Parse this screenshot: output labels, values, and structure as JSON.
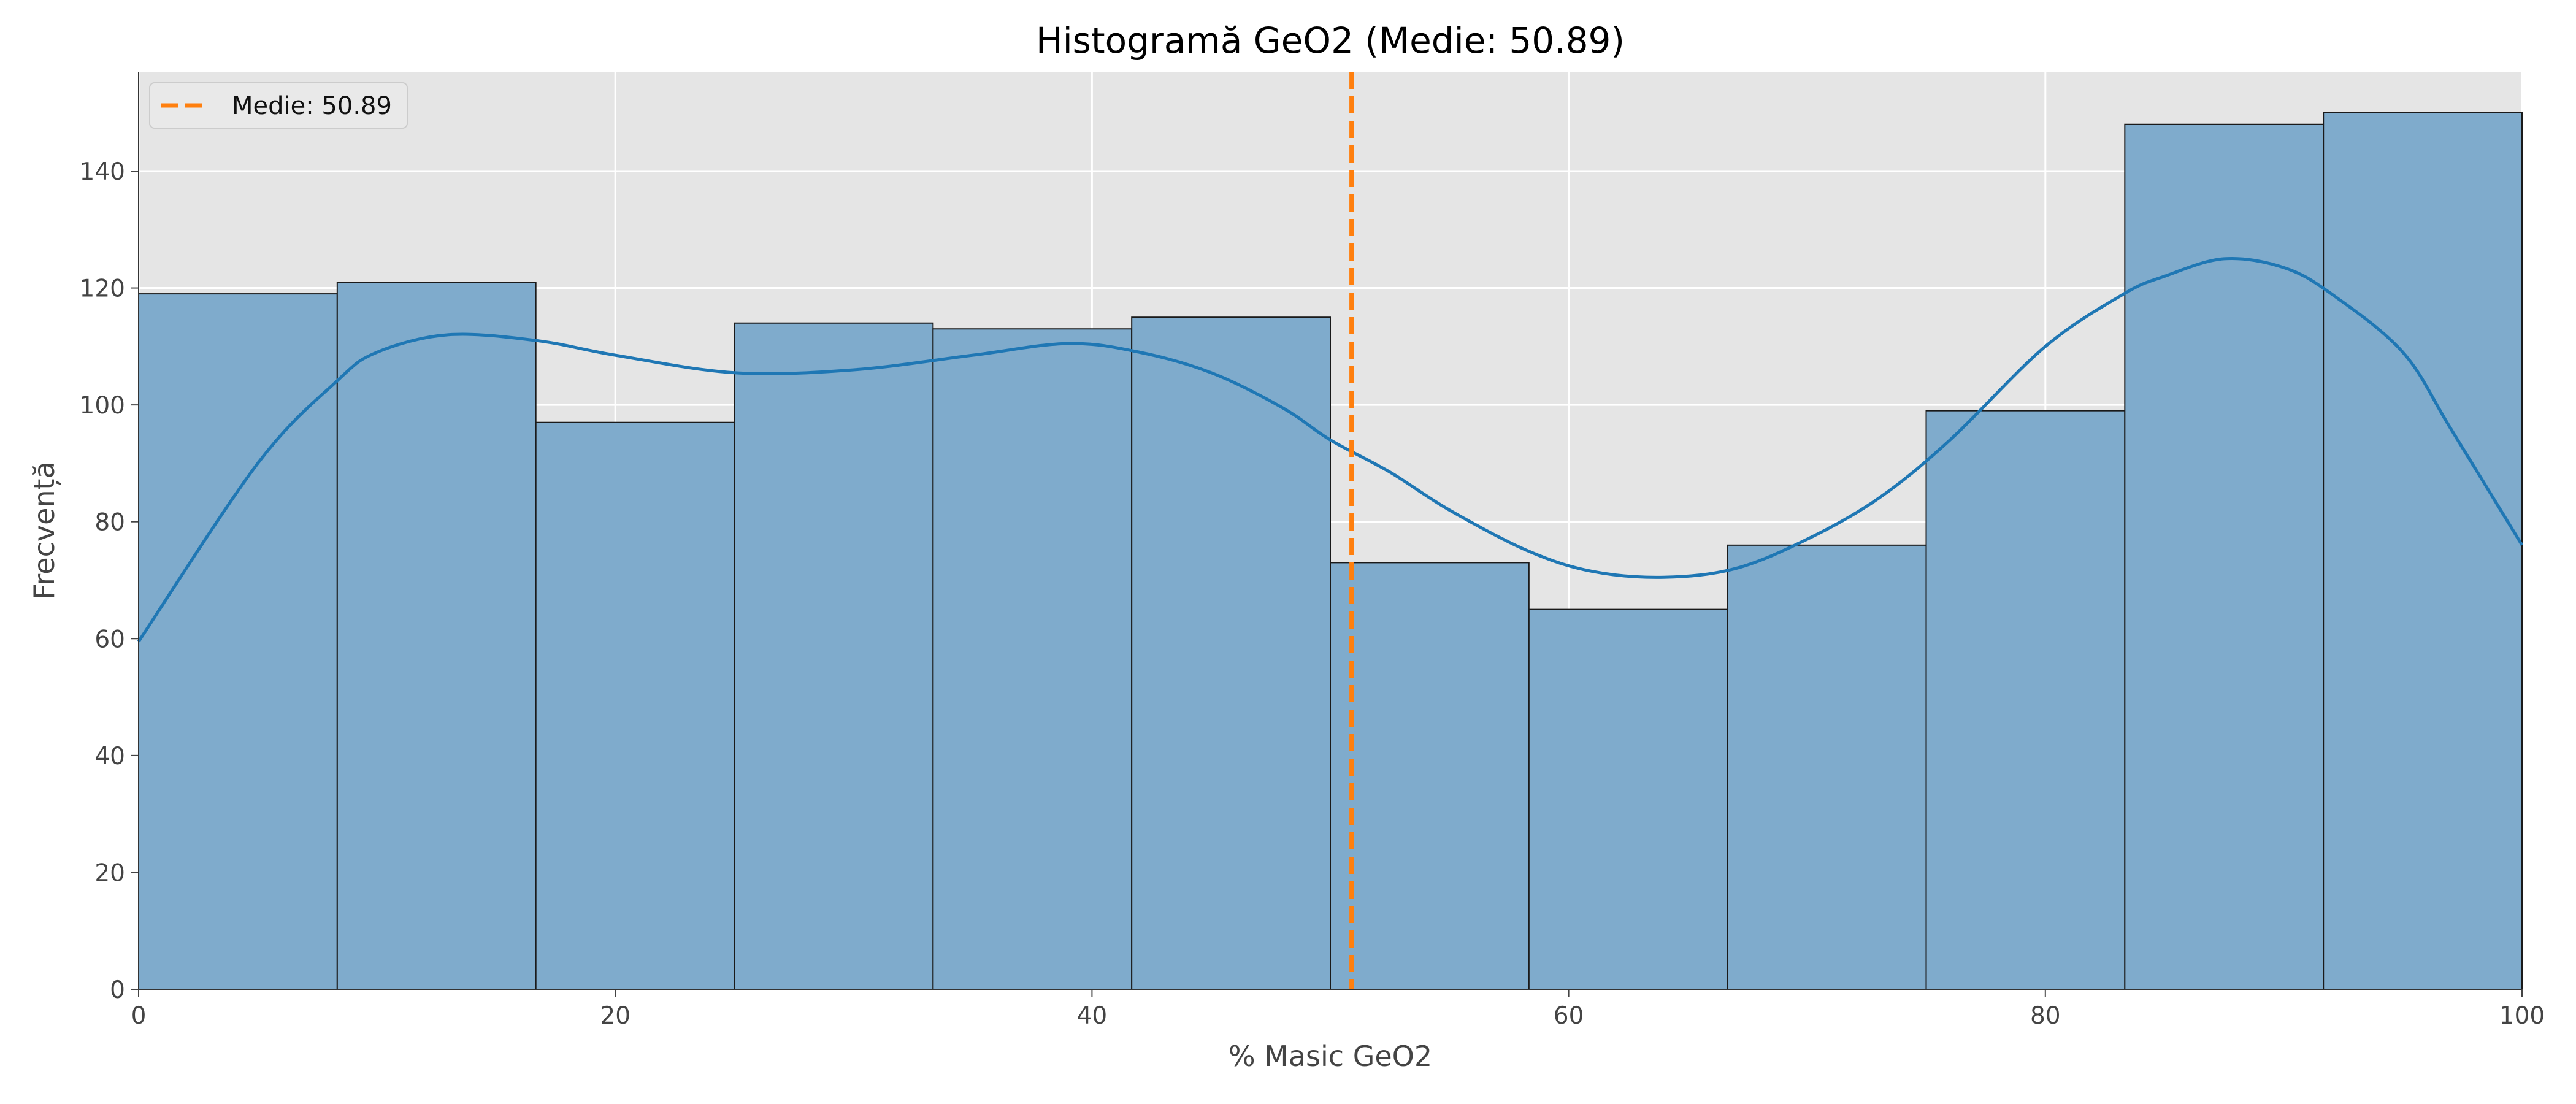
{
  "chart_data": {
    "type": "bar",
    "title": "Histogramă GeO2 (Medie: 50.89)",
    "xlabel": "% Masic GeO2",
    "ylabel": "Frecvență",
    "xlim": [
      0,
      100
    ],
    "ylim": [
      0,
      157
    ],
    "xticks": [
      0,
      20,
      40,
      60,
      80,
      100
    ],
    "yticks": [
      0,
      20,
      40,
      60,
      80,
      100,
      120,
      140
    ],
    "grid": true,
    "legend_position": "top-left",
    "bins": {
      "edges": [
        0,
        8.333,
        16.667,
        25,
        33.333,
        41.667,
        50,
        58.333,
        66.667,
        75,
        83.333,
        91.667,
        100
      ],
      "counts": [
        119,
        121,
        97,
        114,
        113,
        115,
        73,
        65,
        76,
        99,
        148,
        150
      ]
    },
    "kde": {
      "x": [
        0,
        5,
        8.3,
        10,
        13,
        16.7,
        20,
        25,
        30,
        35,
        39,
        42,
        45,
        48,
        50,
        52.5,
        55,
        58.3,
        61,
        64,
        67,
        70,
        73,
        76,
        80,
        83.3,
        85,
        87.5,
        90,
        92,
        95,
        97,
        100
      ],
      "y": [
        59.5,
        90,
        104,
        109,
        112,
        111,
        108.5,
        105.5,
        106,
        108.5,
        110.5,
        109,
        105.5,
        99.5,
        94,
        88.5,
        82,
        75,
        71.5,
        70.5,
        72,
        77,
        84,
        94,
        110,
        119,
        122,
        125,
        123.5,
        119,
        109,
        96,
        76
      ]
    },
    "mean_line": {
      "value": 50.89,
      "label": "Medie: 50.89",
      "color": "#ff7f0e"
    },
    "colors": {
      "bars": "#7fabcc",
      "bar_edge": "#1a1a1a",
      "kde": "#1f77b4",
      "plot_background": "#e5e5e5",
      "grid": "#ffffff"
    }
  }
}
